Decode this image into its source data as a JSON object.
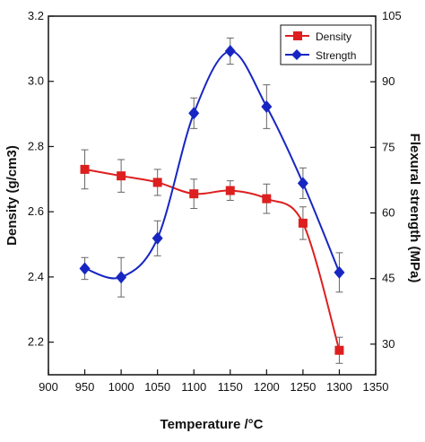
{
  "chart_data": {
    "type": "line",
    "x": [
      950,
      1000,
      1050,
      1100,
      1150,
      1200,
      1250,
      1300
    ],
    "xlabel": "Temperature /°C",
    "xlim": [
      900,
      1350
    ],
    "xticks": [
      "900",
      "950",
      "1000",
      "1050",
      "1100",
      "1150",
      "1200",
      "1250",
      "1300",
      "1350"
    ],
    "ylabel_left": "Density (g/cm3)",
    "ylim_left": [
      2.1,
      3.2
    ],
    "yticks_left": [
      "2.2",
      "2.4",
      "2.6",
      "2.8",
      "3.0",
      "3.2"
    ],
    "ylabel_right": "Flexural strength (MPa)",
    "ylim_right": [
      23,
      105
    ],
    "yticks_right": [
      "30",
      "45",
      "60",
      "75",
      "90",
      "105"
    ],
    "legend_position": "top-right",
    "series": [
      {
        "name": "Density",
        "axis": "left",
        "color": "#dd1f1f",
        "marker": "square",
        "values": [
          2.73,
          2.71,
          2.69,
          2.655,
          2.665,
          2.64,
          2.565,
          2.175
        ],
        "errors": [
          0.06,
          0.05,
          0.04,
          0.045,
          0.03,
          0.045,
          0.05,
          0.04
        ]
      },
      {
        "name": "Strength",
        "axis": "right",
        "color": "#1726c2",
        "marker": "diamond",
        "values": [
          47.3,
          45.3,
          54.2,
          82.8,
          97.0,
          84.3,
          66.8,
          46.4
        ],
        "errors": [
          2.5,
          4.5,
          4.0,
          3.5,
          3.0,
          5.0,
          3.5,
          4.5
        ]
      }
    ]
  }
}
